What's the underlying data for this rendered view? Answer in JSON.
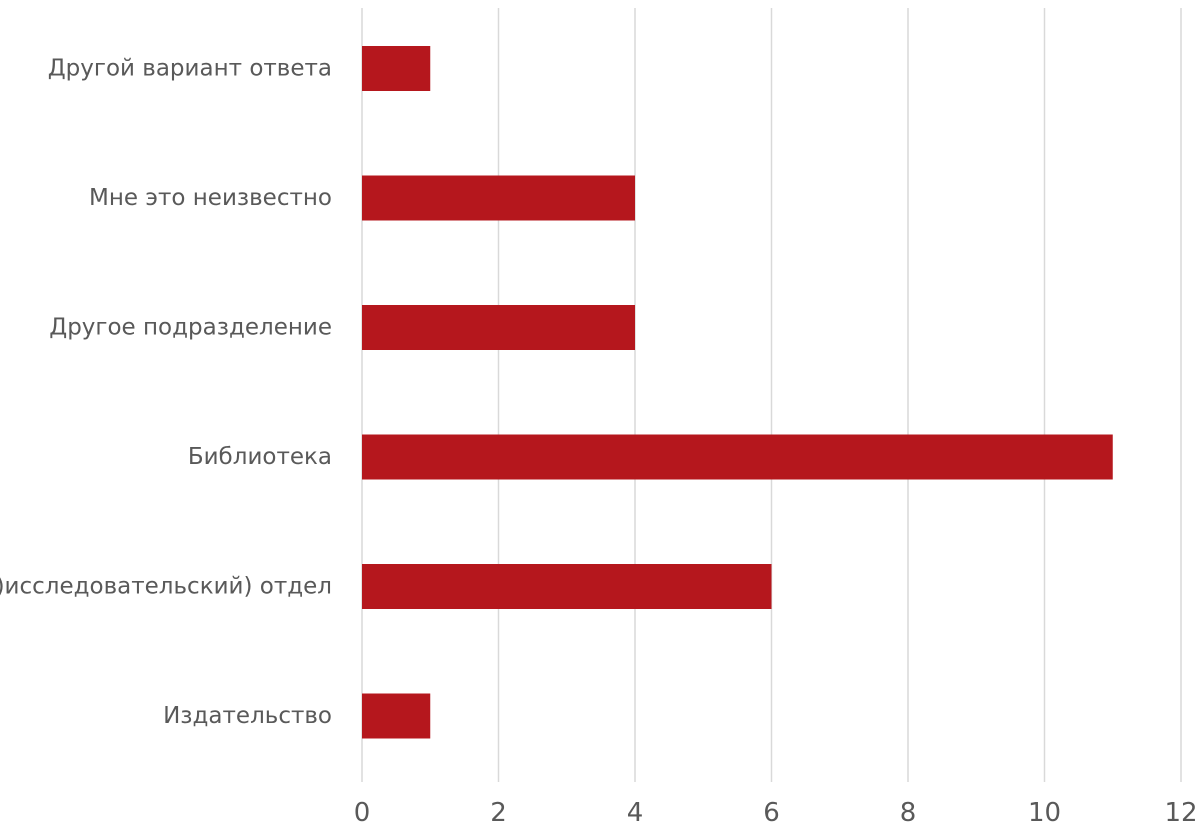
{
  "chart_data": {
    "type": "bar",
    "orientation": "horizontal",
    "categories": [
      "Издательство",
      "(Научно-)исследовательский) отдел",
      "Библиотека",
      "Другое подразделение",
      "Мне это неизвестно",
      "Другой вариант ответа"
    ],
    "values": [
      1,
      6,
      11,
      4,
      4,
      1
    ],
    "xlim": [
      0,
      12
    ],
    "xticks": [
      0,
      2,
      4,
      6,
      8,
      10,
      12
    ],
    "xtick_labels": [
      "0",
      "2",
      "4",
      "6",
      "8",
      "10",
      "12"
    ],
    "title": "",
    "xlabel": "",
    "ylabel": "",
    "grid": "vertical",
    "legend": "none",
    "bar_color": "#b5171d",
    "grid_color": "#d9d9d9",
    "text_color": "#595959"
  }
}
